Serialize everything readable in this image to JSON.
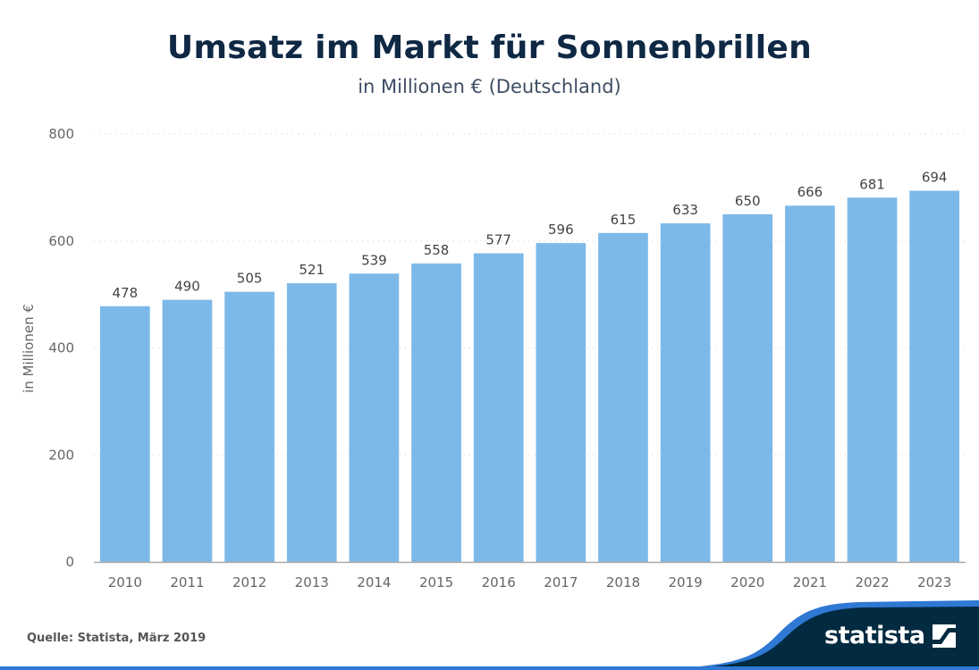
{
  "header": {
    "title": "Umsatz im Markt für Sonnenbrillen",
    "subtitle": "in Millionen € (Deutschland)"
  },
  "footer": {
    "source": "Quelle: Statista, März 2019",
    "logo_text": "statista",
    "logo_icon": "statista-logo-icon"
  },
  "colors": {
    "bar": "#7db9e8",
    "title": "#0f2844",
    "footer_dark": "#022a40",
    "footer_accent": "#2f78d3"
  },
  "chart_data": {
    "type": "bar",
    "title": "Umsatz im Markt für Sonnenbrillen",
    "subtitle": "in Millionen € (Deutschland)",
    "xlabel": "",
    "ylabel": "in Millionen €",
    "categories": [
      "2010",
      "2011",
      "2012",
      "2013",
      "2014",
      "2015",
      "2016",
      "2017",
      "2018",
      "2019",
      "2020",
      "2021",
      "2022",
      "2023"
    ],
    "values": [
      478,
      490,
      505,
      521,
      539,
      558,
      577,
      596,
      615,
      633,
      650,
      666,
      681,
      694
    ],
    "ylim": [
      0,
      800
    ],
    "yticks": [
      0,
      200,
      400,
      600,
      800
    ],
    "grid": true,
    "legend": "none",
    "data_labels": true
  }
}
